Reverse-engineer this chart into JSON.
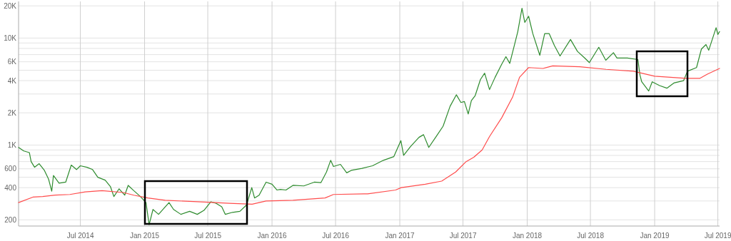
{
  "chart_data": {
    "type": "line",
    "log": "y",
    "grid": true,
    "xlim": [
      "2014-01-05",
      "2019-07-06"
    ],
    "xticks": [
      {
        "value": "2014-07-01",
        "label": "Jul 2014"
      },
      {
        "value": "2015-01-01",
        "label": "Jan 2015"
      },
      {
        "value": "2015-07-01",
        "label": "Jul 2015"
      },
      {
        "value": "2016-01-01",
        "label": "Jan 2016"
      },
      {
        "value": "2016-07-01",
        "label": "Jul 2016"
      },
      {
        "value": "2017-01-01",
        "label": "Jan 2017"
      },
      {
        "value": "2017-07-01",
        "label": "Jul 2017"
      },
      {
        "value": "2018-01-01",
        "label": "Jan 2018"
      },
      {
        "value": "2018-07-01",
        "label": "Jul 2018"
      },
      {
        "value": "2019-01-01",
        "label": "Jan 2019"
      },
      {
        "value": "2019-07-01",
        "label": "Jul 2019"
      }
    ],
    "ylim": [
      175,
      22000
    ],
    "yticks": [
      200,
      {
        "value": 300,
        "label": null
      },
      400,
      {
        "value": 500,
        "label": null
      },
      600,
      {
        "value": 700,
        "label": null
      },
      {
        "value": 800,
        "label": null
      },
      {
        "value": 900,
        "label": null
      },
      {
        "value": 1000,
        "label": "1K"
      },
      {
        "value": 2000,
        "label": "2K"
      },
      {
        "value": 3000,
        "label": null
      },
      {
        "value": 4000,
        "label": "4K"
      },
      {
        "value": 5000,
        "label": null
      },
      {
        "value": 6000,
        "label": "6K"
      },
      {
        "value": 7000,
        "label": null
      },
      {
        "value": 8000,
        "label": null
      },
      {
        "value": 9000,
        "label": null
      },
      {
        "value": 10000,
        "label": "10K"
      },
      {
        "value": 20000,
        "label": "20K"
      }
    ],
    "series": [
      {
        "color": "#2e8b2e",
        "x": [
          "2014-01-05",
          "2014-01-20",
          "2014-02-05",
          "2014-02-10",
          "2014-02-20",
          "2014-03-05",
          "2014-03-20",
          "2014-04-01",
          "2014-04-10",
          "2014-04-15",
          "2014-05-01",
          "2014-05-20",
          "2014-06-05",
          "2014-06-20",
          "2014-07-01",
          "2014-07-20",
          "2014-08-05",
          "2014-08-20",
          "2014-09-10",
          "2014-09-25",
          "2014-10-05",
          "2014-10-20",
          "2014-11-05",
          "2014-11-15",
          "2014-12-01",
          "2014-12-20",
          "2015-01-05",
          "2015-01-14",
          "2015-01-25",
          "2015-02-10",
          "2015-02-25",
          "2015-03-12",
          "2015-03-25",
          "2015-04-15",
          "2015-05-10",
          "2015-06-01",
          "2015-06-20",
          "2015-07-10",
          "2015-07-25",
          "2015-08-10",
          "2015-08-20",
          "2015-09-10",
          "2015-10-01",
          "2015-10-20",
          "2015-11-04",
          "2015-11-12",
          "2015-11-25",
          "2015-12-15",
          "2016-01-01",
          "2016-01-15",
          "2016-01-25",
          "2016-02-10",
          "2016-03-01",
          "2016-04-01",
          "2016-05-01",
          "2016-05-20",
          "2016-06-05",
          "2016-06-17",
          "2016-06-25",
          "2016-07-15",
          "2016-08-02",
          "2016-08-15",
          "2016-09-15",
          "2016-10-15",
          "2016-11-15",
          "2016-12-15",
          "2017-01-04",
          "2017-01-12",
          "2017-02-01",
          "2017-02-25",
          "2017-03-10",
          "2017-03-25",
          "2017-04-15",
          "2017-05-05",
          "2017-05-25",
          "2017-06-12",
          "2017-06-25",
          "2017-07-05",
          "2017-07-16",
          "2017-07-25",
          "2017-08-05",
          "2017-08-20",
          "2017-09-01",
          "2017-09-15",
          "2017-10-01",
          "2017-10-20",
          "2017-11-01",
          "2017-11-12",
          "2017-11-25",
          "2017-12-05",
          "2017-12-17",
          "2017-12-25",
          "2018-01-05",
          "2018-01-17",
          "2018-02-06",
          "2018-02-20",
          "2018-03-05",
          "2018-03-20",
          "2018-04-05",
          "2018-05-05",
          "2018-05-25",
          "2018-06-15",
          "2018-06-28",
          "2018-07-25",
          "2018-08-14",
          "2018-09-05",
          "2018-09-15",
          "2018-10-15",
          "2018-11-14",
          "2018-11-20",
          "2018-11-25",
          "2018-12-15",
          "2018-12-25",
          "2019-01-15",
          "2019-02-05",
          "2019-02-25",
          "2019-03-25",
          "2019-04-05",
          "2019-05-01",
          "2019-05-15",
          "2019-05-28",
          "2019-06-05",
          "2019-06-26",
          "2019-07-01",
          "2019-07-06"
        ],
        "values": [
          950,
          880,
          850,
          700,
          620,
          670,
          580,
          480,
          370,
          520,
          440,
          450,
          650,
          590,
          640,
          620,
          590,
          500,
          470,
          410,
          330,
          390,
          340,
          420,
          375,
          330,
          290,
          180,
          250,
          225,
          255,
          290,
          250,
          225,
          240,
          225,
          245,
          295,
          285,
          265,
          225,
          235,
          240,
          275,
          400,
          320,
          340,
          450,
          430,
          380,
          385,
          380,
          420,
          415,
          450,
          445,
          560,
          720,
          630,
          660,
          550,
          580,
          605,
          640,
          720,
          780,
          1100,
          800,
          970,
          1180,
          1250,
          950,
          1200,
          1500,
          2300,
          2950,
          2500,
          2550,
          1950,
          2600,
          2900,
          4100,
          4700,
          3300,
          4300,
          5700,
          6700,
          5800,
          8500,
          11500,
          19000,
          14000,
          16000,
          11000,
          6900,
          11000,
          11000,
          8500,
          6800,
          9700,
          7500,
          6500,
          5900,
          8200,
          6200,
          7300,
          6500,
          6500,
          6300,
          4500,
          3900,
          3200,
          3900,
          3600,
          3400,
          3800,
          4000,
          4900,
          5300,
          7900,
          8700,
          7700,
          12500,
          10800,
          11500
        ]
      },
      {
        "color": "#ff4d4d",
        "x": [
          "2014-01-05",
          "2014-02-15",
          "2014-03-15",
          "2014-04-20",
          "2014-06-01",
          "2014-07-15",
          "2014-09-01",
          "2014-11-01",
          "2014-12-01",
          "2015-01-10",
          "2015-03-01",
          "2015-06-01",
          "2015-09-01",
          "2015-11-05",
          "2015-12-15",
          "2016-03-01",
          "2016-06-01",
          "2016-06-25",
          "2016-10-01",
          "2016-12-20",
          "2017-01-05",
          "2017-03-15",
          "2017-05-01",
          "2017-06-10",
          "2017-07-10",
          "2017-08-01",
          "2017-08-25",
          "2017-09-15",
          "2017-10-20",
          "2017-11-20",
          "2017-12-10",
          "2018-01-05",
          "2018-02-15",
          "2018-03-15",
          "2018-06-01",
          "2018-08-15",
          "2018-11-01",
          "2019-01-01",
          "2019-04-01",
          "2019-05-10",
          "2019-06-01",
          "2019-07-06"
        ],
        "values": [
          290,
          326,
          330,
          340,
          345,
          365,
          375,
          360,
          340,
          320,
          305,
          295,
          285,
          280,
          300,
          305,
          320,
          345,
          350,
          380,
          400,
          430,
          460,
          560,
          700,
          770,
          900,
          1200,
          1800,
          2800,
          4300,
          5300,
          5200,
          5500,
          5400,
          5100,
          4900,
          4400,
          4200,
          4200,
          4600,
          5200
        ]
      }
    ]
  }
}
